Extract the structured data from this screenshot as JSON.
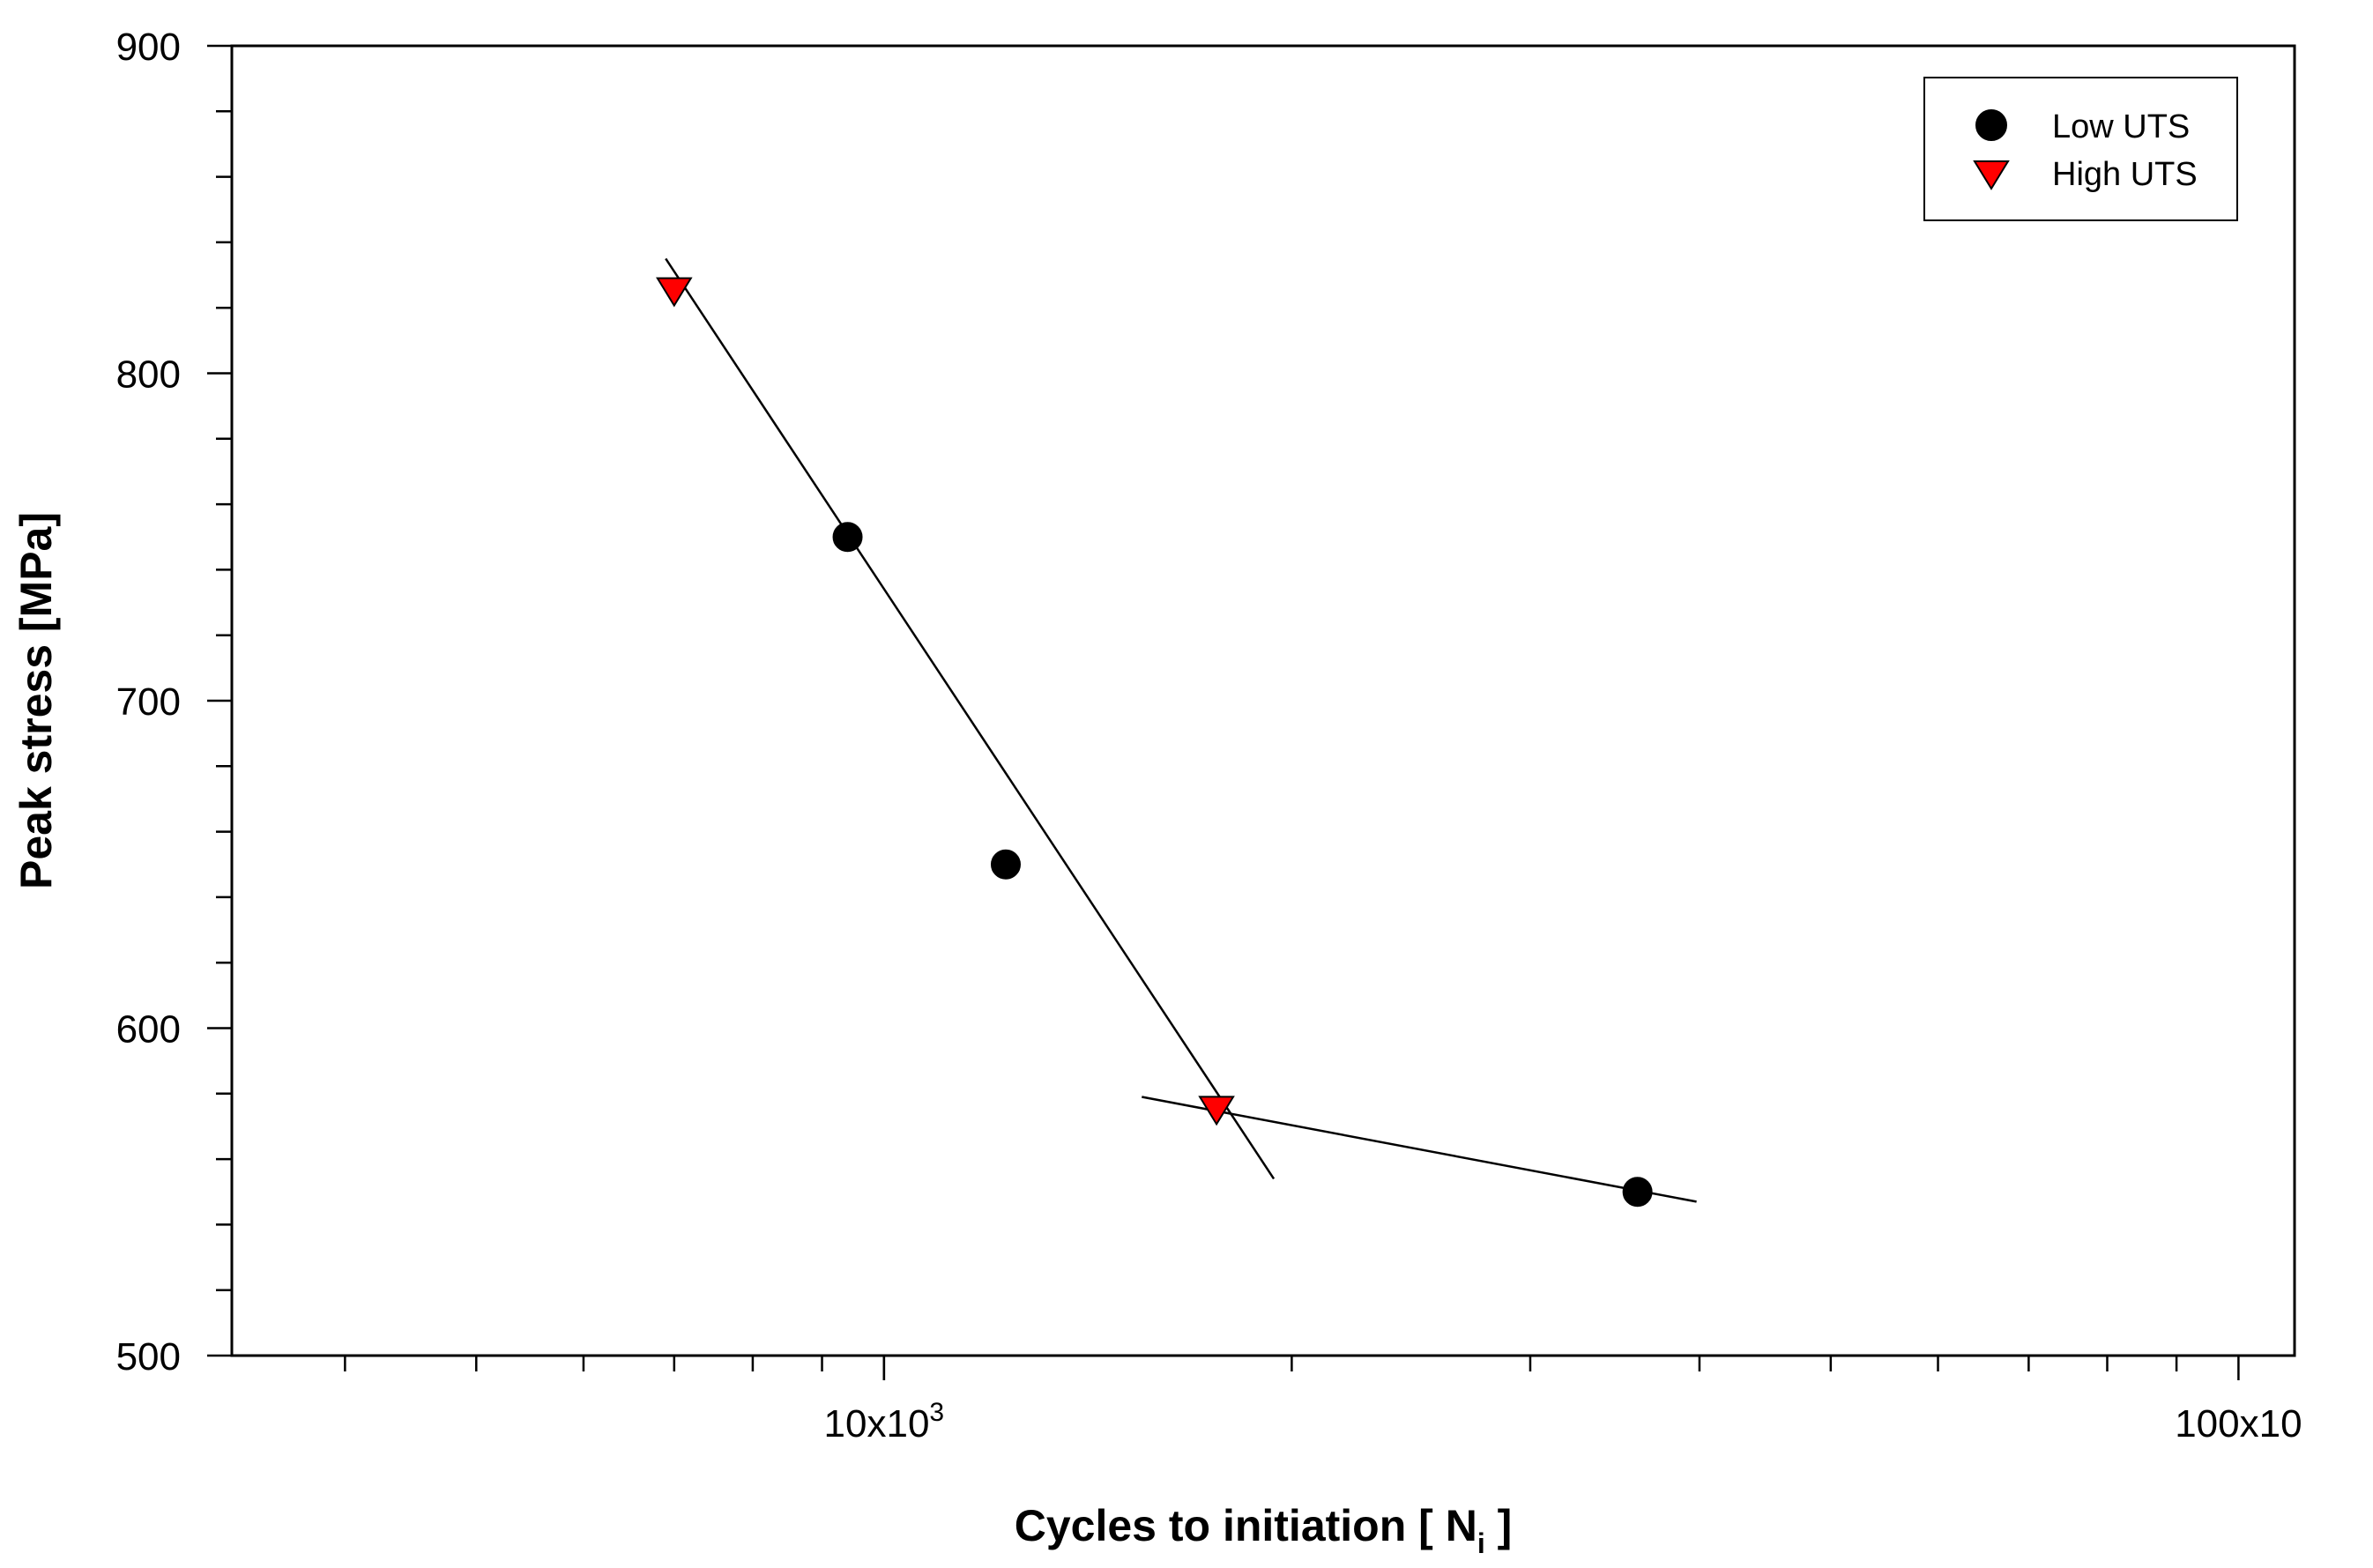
{
  "chart_data": {
    "type": "scatter",
    "xlabel": "Cycles to initiation [ N",
    "xlabel_subscript": "i",
    "xlabel_suffix": " ]",
    "ylabel": "Peak stress  [MPa]",
    "x_scale": "log",
    "xlim": [
      3300,
      110000
    ],
    "ylim": [
      500,
      900
    ],
    "x_ticks": [
      {
        "value": 10000,
        "base": "10x10",
        "exp": "3"
      },
      {
        "value": 100000,
        "base": "100x10",
        "exp": ""
      }
    ],
    "y_ticks": [
      {
        "value": 500,
        "label": "500"
      },
      {
        "value": 600,
        "label": "600"
      },
      {
        "value": 700,
        "label": "700"
      },
      {
        "value": 800,
        "label": "800"
      },
      {
        "value": 900,
        "label": "900"
      }
    ],
    "grid": false,
    "legend_position": "top-right",
    "series": [
      {
        "name": "Low UTS",
        "marker": "circle",
        "color": "#000000",
        "points": [
          {
            "x": 9400,
            "y": 750
          },
          {
            "x": 12300,
            "y": 650
          },
          {
            "x": 36000,
            "y": 550
          }
        ]
      },
      {
        "name": "High UTS",
        "marker": "triangle-down",
        "color": "#ff0000",
        "points": [
          {
            "x": 7000,
            "y": 825
          },
          {
            "x": 17600,
            "y": 575
          }
        ]
      }
    ],
    "fit_lines": [
      {
        "x": [
          6900,
          19400
        ],
        "y": [
          835,
          554
        ]
      },
      {
        "x": [
          15500,
          39800
        ],
        "y": [
          579,
          547
        ]
      }
    ]
  }
}
